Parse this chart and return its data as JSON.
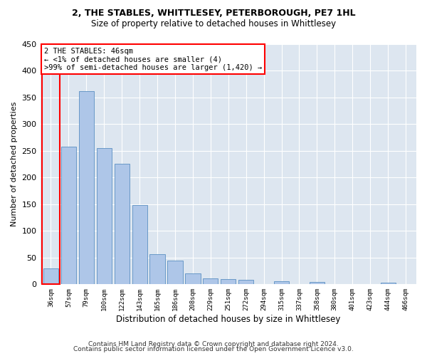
{
  "title": "2, THE STABLES, WHITTLESEY, PETERBOROUGH, PE7 1HL",
  "subtitle": "Size of property relative to detached houses in Whittlesey",
  "xlabel": "Distribution of detached houses by size in Whittlesey",
  "ylabel": "Number of detached properties",
  "categories": [
    "36sqm",
    "57sqm",
    "79sqm",
    "100sqm",
    "122sqm",
    "143sqm",
    "165sqm",
    "186sqm",
    "208sqm",
    "229sqm",
    "251sqm",
    "272sqm",
    "294sqm",
    "315sqm",
    "337sqm",
    "358sqm",
    "380sqm",
    "401sqm",
    "423sqm",
    "444sqm",
    "466sqm"
  ],
  "values": [
    30,
    258,
    362,
    255,
    226,
    148,
    57,
    45,
    20,
    11,
    10,
    8,
    0,
    6,
    0,
    4,
    0,
    0,
    0,
    3,
    0
  ],
  "bar_color": "#aec6e8",
  "bar_edge_color": "#5a8fc2",
  "annotation_line1": "2 THE STABLES: 46sqm",
  "annotation_line2": "← <1% of detached houses are smaller (4)",
  "annotation_line3": ">99% of semi-detached houses are larger (1,420) →",
  "ylim": [
    0,
    450
  ],
  "yticks": [
    0,
    50,
    100,
    150,
    200,
    250,
    300,
    350,
    400,
    450
  ],
  "background_color": "#dde6f0",
  "footer_line1": "Contains HM Land Registry data © Crown copyright and database right 2024.",
  "footer_line2": "Contains public sector information licensed under the Open Government Licence v3.0."
}
